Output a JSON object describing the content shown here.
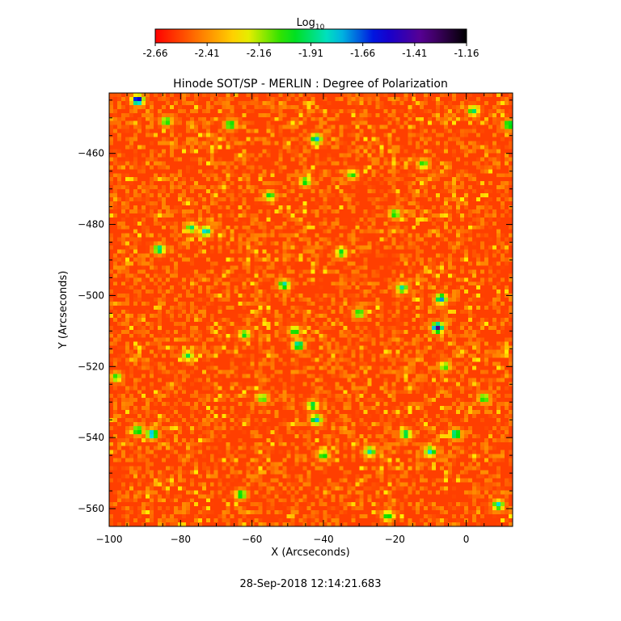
{
  "chart_data": {
    "type": "heatmap",
    "title": "Hinode SOT/SP - MERLIN : Degree of Polarization",
    "xlabel": "X (Arcseconds)",
    "ylabel": "Y (Arcseconds)",
    "xlim": [
      -100,
      13
    ],
    "ylim": [
      -565,
      -443
    ],
    "x_ticks": [
      -100,
      -80,
      -60,
      -40,
      -20,
      0
    ],
    "y_ticks": [
      -460,
      -480,
      -500,
      -520,
      -540,
      -560
    ],
    "colorbar": {
      "label_base": "Log",
      "label_sub": "10",
      "ticks": [
        -2.66,
        -2.41,
        -2.16,
        -1.91,
        -1.66,
        -1.41,
        -1.16
      ],
      "tick_labels": [
        "-2.66",
        "-2.41",
        "-2.16",
        "-1.91",
        "-1.66",
        "-1.41",
        "-1.16"
      ],
      "range": [
        -2.66,
        -1.16
      ],
      "colormap": [
        "#ff0000",
        "#ff7a00",
        "#ffee00",
        "#00e000",
        "#00e0e0",
        "#0000e0",
        "#5a0090",
        "#000000"
      ]
    },
    "background_level": -2.55,
    "features": [
      {
        "x": -92,
        "y": -445,
        "v": -1.4
      },
      {
        "x": -8,
        "y": -509,
        "v": -1.35
      },
      {
        "x": -7,
        "y": -501,
        "v": -1.7
      },
      {
        "x": -47,
        "y": -514,
        "v": -1.75
      },
      {
        "x": -48,
        "y": -510,
        "v": -1.95
      },
      {
        "x": -42,
        "y": -535,
        "v": -1.75
      },
      {
        "x": -43,
        "y": -531,
        "v": -1.9
      },
      {
        "x": -88,
        "y": -539,
        "v": -1.65
      },
      {
        "x": -92,
        "y": -538,
        "v": -1.9
      },
      {
        "x": -73,
        "y": -482,
        "v": -1.75
      },
      {
        "x": -77,
        "y": -481,
        "v": -1.9
      },
      {
        "x": -42,
        "y": -456,
        "v": -1.75
      },
      {
        "x": -20,
        "y": -477,
        "v": -1.95
      },
      {
        "x": -10,
        "y": -544,
        "v": -1.8
      },
      {
        "x": -3,
        "y": -539,
        "v": -1.75
      },
      {
        "x": -17,
        "y": -539,
        "v": -1.85
      },
      {
        "x": -27,
        "y": -544,
        "v": -1.85
      },
      {
        "x": -84,
        "y": -451,
        "v": -1.95
      },
      {
        "x": -66,
        "y": -452,
        "v": -1.9
      },
      {
        "x": -30,
        "y": -505,
        "v": -1.95
      },
      {
        "x": -62,
        "y": -511,
        "v": -1.95
      },
      {
        "x": -18,
        "y": -498,
        "v": -1.85
      },
      {
        "x": -86,
        "y": -487,
        "v": -1.8
      },
      {
        "x": 9,
        "y": -559,
        "v": -1.8
      },
      {
        "x": -55,
        "y": -472,
        "v": -1.95
      },
      {
        "x": -35,
        "y": -488,
        "v": -1.95
      },
      {
        "x": 5,
        "y": -529,
        "v": -1.95
      },
      {
        "x": 12,
        "y": -452,
        "v": -1.85
      },
      {
        "x": -45,
        "y": -468,
        "v": -1.95
      },
      {
        "x": -6,
        "y": -520,
        "v": -2.0
      },
      {
        "x": -40,
        "y": -545,
        "v": -1.95
      },
      {
        "x": -22,
        "y": -562,
        "v": -1.95
      },
      {
        "x": -78,
        "y": -517,
        "v": -1.95
      },
      {
        "x": -51,
        "y": -497,
        "v": -1.8
      },
      {
        "x": -32,
        "y": -466,
        "v": -2.0
      },
      {
        "x": 2,
        "y": -448,
        "v": -1.9
      },
      {
        "x": -98,
        "y": -523,
        "v": -2.0
      },
      {
        "x": -63,
        "y": -556,
        "v": -1.9
      },
      {
        "x": -12,
        "y": -463,
        "v": -2.0
      },
      {
        "x": -57,
        "y": -529,
        "v": -2.0
      }
    ],
    "grid": false,
    "legend": "none"
  },
  "timestamp": "28-Sep-2018 12:14:21.683"
}
